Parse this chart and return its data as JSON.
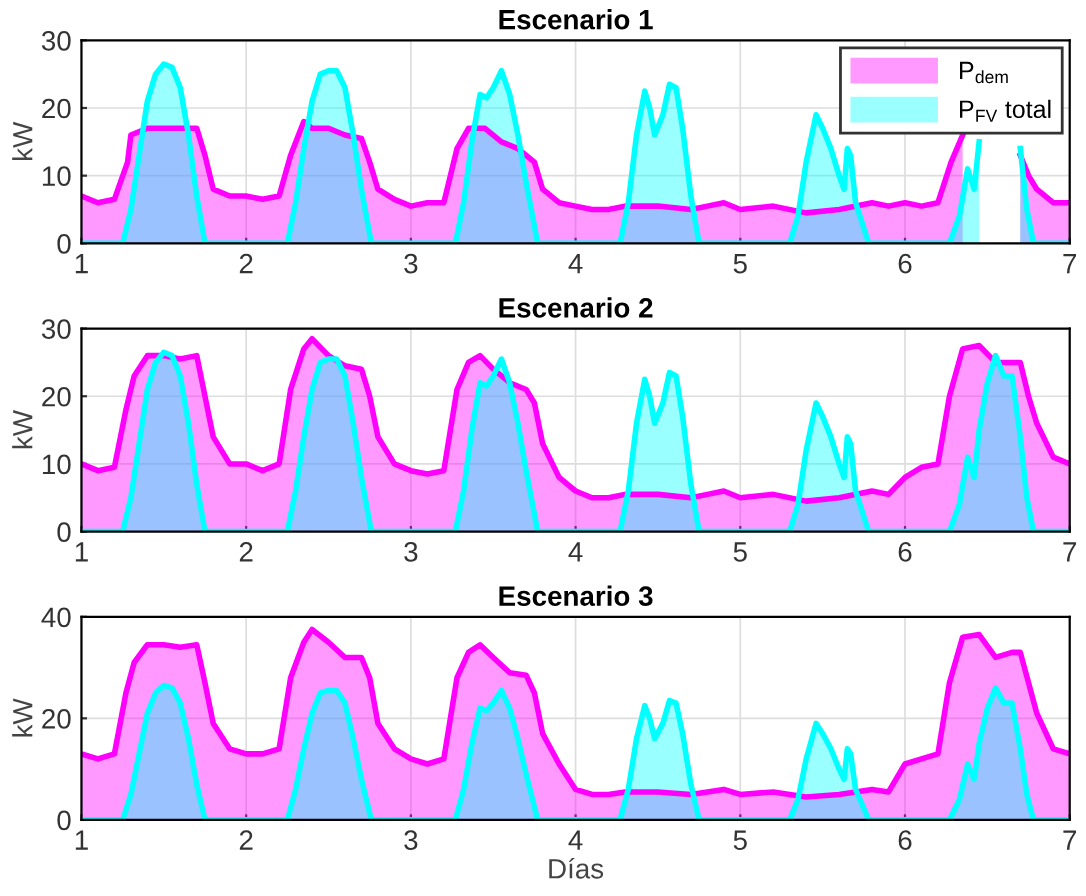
{
  "chart_data": [
    {
      "type": "area",
      "title": "Escenario 1",
      "ylabel": "kW",
      "xlim": [
        1,
        7
      ],
      "xticks": [
        1,
        2,
        3,
        4,
        5,
        6,
        7
      ],
      "ylim": [
        0,
        30
      ],
      "yticks": [
        0,
        10,
        20,
        30
      ],
      "grid": true,
      "legend": "top right",
      "series": [
        {
          "name": "P$_{dem}$",
          "color": "#ff00ff",
          "x": [
            1.0,
            1.1,
            1.2,
            1.28,
            1.3,
            1.4,
            1.5,
            1.6,
            1.7,
            1.75,
            1.8,
            1.9,
            2.0,
            2.1,
            2.2,
            2.27,
            2.35,
            2.4,
            2.5,
            2.6,
            2.7,
            2.75,
            2.8,
            2.9,
            3.0,
            3.1,
            3.2,
            3.28,
            3.35,
            3.45,
            3.55,
            3.65,
            3.75,
            3.8,
            3.9,
            4.0,
            4.1,
            4.2,
            4.3,
            4.5,
            4.7,
            4.8,
            4.9,
            5.0,
            5.2,
            5.4,
            5.6,
            5.8,
            5.9,
            6.0,
            6.1,
            6.2,
            6.28,
            6.35,
            6.4,
            6.5,
            6.6,
            6.7,
            6.75,
            6.8,
            6.9,
            7.0
          ],
          "values": [
            7,
            6,
            6.5,
            12,
            16,
            17,
            17,
            17,
            17,
            13,
            8,
            7,
            7,
            6.5,
            7,
            13,
            18,
            17,
            17,
            16,
            15.5,
            12,
            8,
            6.5,
            5.5,
            6,
            6,
            14,
            17,
            17,
            15,
            14,
            12,
            8,
            6,
            5.5,
            5,
            5,
            5.5,
            5.5,
            5,
            5.5,
            6,
            5,
            5.5,
            4.5,
            5,
            6,
            5.5,
            6,
            5.5,
            6,
            12,
            16,
            null,
            null,
            null,
            13,
            10,
            8,
            6,
            6
          ]
        },
        {
          "name": "P$_{FV}$ total",
          "color": "#00ffff",
          "x": [
            1.0,
            1.25,
            1.3,
            1.35,
            1.4,
            1.45,
            1.5,
            1.55,
            1.6,
            1.65,
            1.7,
            1.75,
            2.25,
            2.3,
            2.35,
            2.4,
            2.45,
            2.5,
            2.55,
            2.6,
            2.65,
            2.7,
            2.76,
            3.27,
            3.32,
            3.37,
            3.42,
            3.46,
            3.5,
            3.55,
            3.6,
            3.65,
            3.7,
            3.77,
            4.27,
            4.32,
            4.37,
            4.42,
            4.45,
            4.48,
            4.53,
            4.57,
            4.61,
            4.65,
            4.7,
            4.75,
            5.3,
            5.35,
            5.4,
            5.46,
            5.5,
            5.55,
            5.6,
            5.63,
            5.65,
            5.67,
            5.7,
            5.78,
            6.27,
            6.3,
            6.33,
            6.38,
            6.42,
            6.45,
            6.5,
            6.55,
            6.6,
            6.65,
            6.7,
            6.74,
            6.78,
            7.0
          ],
          "values": [
            0,
            0,
            5,
            13,
            21,
            25,
            26.5,
            26,
            23,
            16,
            7,
            0,
            0,
            6,
            14,
            21,
            25,
            25.5,
            25.5,
            23,
            16,
            8,
            0,
            0,
            6,
            15,
            22,
            21.5,
            23,
            25.5,
            22,
            16,
            9,
            0,
            0,
            6,
            16,
            22.5,
            20,
            16,
            19,
            23.5,
            23,
            17,
            7,
            0,
            0,
            4,
            12,
            19,
            17,
            14,
            10,
            8,
            14,
            13,
            6,
            0,
            0,
            2,
            4,
            11,
            8,
            15,
            null,
            null,
            null,
            null,
            14,
            5,
            0,
            0
          ]
        }
      ]
    },
    {
      "type": "area",
      "title": "Escenario 2",
      "ylabel": "kW",
      "xlim": [
        1,
        7
      ],
      "xticks": [
        1,
        2,
        3,
        4,
        5,
        6,
        7
      ],
      "ylim": [
        0,
        30
      ],
      "yticks": [
        0,
        10,
        20,
        30
      ],
      "grid": true,
      "series": [
        {
          "color": "#ff00ff",
          "x": [
            1.0,
            1.1,
            1.2,
            1.27,
            1.32,
            1.4,
            1.5,
            1.6,
            1.7,
            1.75,
            1.8,
            1.9,
            2.0,
            2.1,
            2.2,
            2.27,
            2.35,
            2.4,
            2.5,
            2.6,
            2.7,
            2.75,
            2.8,
            2.9,
            3.0,
            3.1,
            3.2,
            3.28,
            3.35,
            3.42,
            3.5,
            3.6,
            3.7,
            3.75,
            3.8,
            3.9,
            4.0,
            4.1,
            4.2,
            4.3,
            4.5,
            4.7,
            4.8,
            4.9,
            5.0,
            5.2,
            5.4,
            5.6,
            5.8,
            5.9,
            6.0,
            6.1,
            6.2,
            6.27,
            6.35,
            6.45,
            6.55,
            6.65,
            6.7,
            6.75,
            6.8,
            6.9,
            7.0
          ],
          "values": [
            10,
            9,
            9.5,
            18,
            23,
            26,
            26,
            25.5,
            26,
            20,
            14,
            10,
            10,
            9,
            10,
            21,
            27,
            28.5,
            26,
            24.5,
            24,
            20,
            14,
            10,
            9,
            8.5,
            9,
            21,
            25,
            26,
            24,
            22,
            21,
            19,
            13,
            8,
            6,
            5,
            5,
            5.5,
            5.5,
            5,
            5.5,
            6,
            5,
            5.5,
            4.5,
            5,
            6,
            5.5,
            8,
            9.5,
            10,
            20,
            27,
            27.5,
            25,
            25,
            25,
            20,
            16,
            11,
            10
          ]
        },
        {
          "color": "#00ffff",
          "x": [
            1.0,
            1.25,
            1.3,
            1.35,
            1.4,
            1.45,
            1.5,
            1.55,
            1.6,
            1.65,
            1.7,
            1.75,
            2.25,
            2.3,
            2.35,
            2.4,
            2.45,
            2.5,
            2.55,
            2.6,
            2.65,
            2.7,
            2.76,
            3.27,
            3.32,
            3.37,
            3.42,
            3.46,
            3.5,
            3.55,
            3.6,
            3.65,
            3.7,
            3.77,
            4.27,
            4.32,
            4.37,
            4.42,
            4.45,
            4.48,
            4.53,
            4.57,
            4.61,
            4.65,
            4.7,
            4.75,
            5.3,
            5.35,
            5.4,
            5.46,
            5.5,
            5.55,
            5.6,
            5.63,
            5.65,
            5.67,
            5.7,
            5.78,
            6.27,
            6.3,
            6.33,
            6.38,
            6.42,
            6.45,
            6.5,
            6.55,
            6.6,
            6.65,
            6.7,
            6.74,
            6.78,
            7.0
          ],
          "values": [
            0,
            0,
            5,
            13,
            21,
            25,
            26.5,
            26,
            23,
            16,
            7,
            0,
            0,
            6,
            14,
            21,
            25,
            25.5,
            25.5,
            23,
            16,
            8,
            0,
            0,
            6,
            15,
            22,
            21.5,
            23,
            25.5,
            22,
            16,
            9,
            0,
            0,
            6,
            16,
            22.5,
            20,
            16,
            19,
            23.5,
            23,
            17,
            7,
            0,
            0,
            4,
            12,
            19,
            17,
            14,
            10,
            8,
            14,
            13,
            6,
            0,
            0,
            2,
            4,
            11,
            8,
            15,
            22,
            26,
            23,
            23,
            14,
            5,
            0,
            0
          ]
        }
      ]
    },
    {
      "type": "area",
      "title": "Escenario 3",
      "xlabel": "Días",
      "ylabel": "kW",
      "xlim": [
        1,
        7
      ],
      "xticks": [
        1,
        2,
        3,
        4,
        5,
        6,
        7
      ],
      "ylim": [
        0,
        40
      ],
      "yticks": [
        0,
        20,
        40
      ],
      "grid": true,
      "series": [
        {
          "color": "#ff00ff",
          "x": [
            1.0,
            1.1,
            1.2,
            1.27,
            1.32,
            1.4,
            1.5,
            1.6,
            1.7,
            1.75,
            1.8,
            1.9,
            2.0,
            2.1,
            2.2,
            2.27,
            2.35,
            2.4,
            2.5,
            2.6,
            2.7,
            2.75,
            2.8,
            2.9,
            3.0,
            3.1,
            3.2,
            3.28,
            3.35,
            3.42,
            3.5,
            3.6,
            3.7,
            3.75,
            3.8,
            3.9,
            4.0,
            4.1,
            4.2,
            4.3,
            4.5,
            4.7,
            4.8,
            4.9,
            5.0,
            5.2,
            5.4,
            5.6,
            5.8,
            5.9,
            6.0,
            6.1,
            6.2,
            6.27,
            6.35,
            6.45,
            6.55,
            6.65,
            6.7,
            6.75,
            6.8,
            6.9,
            7.0
          ],
          "values": [
            13,
            12,
            13,
            25,
            31,
            34.5,
            34.5,
            34,
            34.5,
            27,
            19,
            14,
            13,
            13,
            14,
            28,
            35,
            37.5,
            35,
            32,
            32,
            28,
            19,
            14,
            12,
            11,
            12,
            28,
            33,
            34.5,
            32,
            29,
            28.5,
            25,
            17,
            11,
            6,
            5,
            5,
            5.5,
            5.5,
            5,
            5.5,
            6,
            5,
            5.5,
            4.5,
            5,
            6,
            5.5,
            11,
            12,
            13,
            27,
            36,
            36.5,
            32,
            33,
            33,
            27,
            21,
            14,
            13
          ]
        },
        {
          "color": "#00ffff",
          "x": [
            1.0,
            1.25,
            1.3,
            1.35,
            1.4,
            1.45,
            1.5,
            1.55,
            1.6,
            1.65,
            1.7,
            1.75,
            2.25,
            2.3,
            2.35,
            2.4,
            2.45,
            2.5,
            2.55,
            2.6,
            2.65,
            2.7,
            2.76,
            3.27,
            3.32,
            3.37,
            3.42,
            3.46,
            3.5,
            3.55,
            3.6,
            3.65,
            3.7,
            3.77,
            4.27,
            4.32,
            4.37,
            4.42,
            4.45,
            4.48,
            4.53,
            4.57,
            4.61,
            4.65,
            4.7,
            4.75,
            5.3,
            5.35,
            5.4,
            5.46,
            5.5,
            5.55,
            5.6,
            5.63,
            5.65,
            5.67,
            5.7,
            5.78,
            6.27,
            6.3,
            6.33,
            6.38,
            6.42,
            6.45,
            6.5,
            6.55,
            6.6,
            6.65,
            6.7,
            6.74,
            6.78,
            7.0
          ],
          "values": [
            0,
            0,
            5,
            13,
            21,
            25,
            26.5,
            26,
            23,
            16,
            7,
            0,
            0,
            6,
            14,
            21,
            25,
            25.5,
            25.5,
            23,
            16,
            8,
            0,
            0,
            6,
            15,
            22,
            21.5,
            23,
            25.5,
            22,
            16,
            9,
            0,
            0,
            6,
            16,
            22.5,
            20,
            16,
            19,
            23.5,
            23,
            17,
            7,
            0,
            0,
            4,
            12,
            19,
            17,
            14,
            10,
            8,
            14,
            13,
            6,
            0,
            0,
            2,
            4,
            11,
            8,
            15,
            22,
            26,
            23,
            23,
            14,
            5,
            0,
            0
          ]
        }
      ]
    }
  ]
}
